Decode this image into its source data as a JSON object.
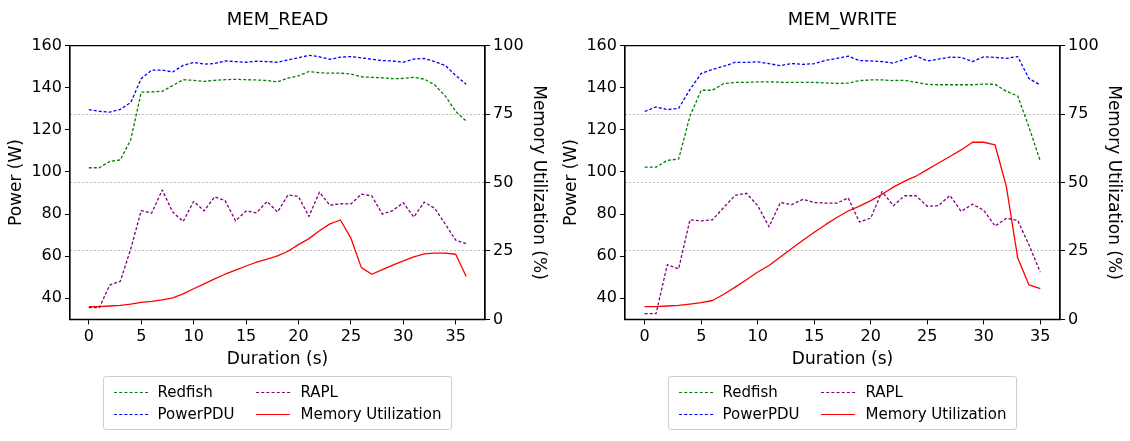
{
  "chart_data": [
    {
      "type": "line",
      "title": "MEM_READ",
      "xlabel": "Duration (s)",
      "ylabel": "Power (W)",
      "y2label": "Memory Utilization (%)",
      "x": [
        0,
        1,
        2,
        3,
        4,
        5,
        6,
        7,
        8,
        9,
        10,
        11,
        12,
        13,
        14,
        15,
        16,
        17,
        18,
        19,
        20,
        21,
        22,
        23,
        24,
        25,
        26,
        27,
        28,
        29,
        30,
        31,
        32,
        33,
        34,
        35,
        36
      ],
      "series": [
        {
          "name": "Redfish",
          "color": "#008000",
          "line_style": "dashed",
          "values": [
            102,
            102,
            105,
            105.7,
            115.3,
            137.9,
            138,
            138.3,
            141,
            143.8,
            143.5,
            143,
            143.5,
            143.8,
            144,
            143.8,
            143.7,
            143.4,
            142.8,
            144.6,
            145.6,
            147.7,
            147.1,
            146.9,
            146.9,
            146.5,
            145.2,
            144.9,
            144.7,
            144.3,
            144.4,
            144.9,
            144.1,
            141.3,
            136.1,
            128.7,
            124.2
          ]
        },
        {
          "name": "PowerPDU",
          "color": "#0000ff",
          "line_style": "dashed",
          "values": [
            129.6,
            128.8,
            128.4,
            129.7,
            133,
            144.3,
            148.4,
            148.4,
            147.5,
            150.6,
            152,
            151.2,
            151.5,
            152.7,
            152.4,
            152.1,
            152.6,
            152.4,
            152.1,
            153.2,
            154.2,
            155.4,
            154.7,
            153.5,
            154.5,
            154.8,
            154.2,
            153.5,
            152.9,
            152.7,
            152.1,
            153.6,
            153.9,
            152.4,
            150.6,
            145.8,
            141.6
          ]
        },
        {
          "name": "RAPL",
          "color": "#800080",
          "line_style": "dashed",
          "values": [
            35.6,
            35.6,
            46.3,
            48.1,
            63.4,
            81.7,
            80.5,
            91.4,
            81,
            76.5,
            86,
            81.5,
            88.2,
            86.4,
            76.8,
            81.5,
            80.6,
            86,
            81,
            89.1,
            88.3,
            78.9,
            90.4,
            84.2,
            84.9,
            84.8,
            89.5,
            88.6,
            80,
            81.7,
            85.4,
            78.6,
            85.7,
            82.7,
            75.3,
            67.6,
            66
          ]
        },
        {
          "name": "Memory Utilization",
          "color": "#ff0000",
          "line_style": "solid",
          "axis": "y2",
          "values": [
            4.7,
            4.7,
            4.9,
            5.1,
            5.6,
            6.2,
            6.6,
            7.1,
            7.9,
            9.3,
            11.2,
            13,
            14.8,
            16.5,
            18,
            19.5,
            20.9,
            22,
            23.2,
            24.9,
            27.3,
            29.5,
            32.4,
            34.9,
            36.3,
            29.7,
            18.9,
            16.5,
            18.2,
            19.8,
            21.4,
            22.8,
            23.9,
            24.2,
            24.2,
            23.8,
            15.7
          ]
        }
      ],
      "xlim": [
        -1.8,
        37.8
      ],
      "xticks": [
        0,
        5,
        10,
        15,
        20,
        25,
        30,
        35
      ],
      "ylim": [
        30,
        160
      ],
      "yticks": [
        40,
        60,
        80,
        100,
        120,
        140,
        160
      ],
      "y2lim": [
        0,
        100
      ],
      "y2ticks": [
        0,
        25,
        50,
        75,
        100
      ],
      "grid": "y2",
      "legend": "bottom",
      "marker": "none"
    },
    {
      "type": "line",
      "title": "MEM_WRITE",
      "xlabel": "Duration (s)",
      "ylabel": "Power (W)",
      "y2label": "Memory Utilization (%)",
      "x": [
        0,
        1,
        2,
        3,
        4,
        5,
        6,
        7,
        8,
        9,
        10,
        11,
        12,
        13,
        14,
        15,
        16,
        17,
        18,
        19,
        20,
        21,
        22,
        23,
        24,
        25,
        26,
        27,
        28,
        29,
        30,
        31,
        32,
        33,
        34,
        35
      ],
      "series": [
        {
          "name": "Redfish",
          "color": "#008000",
          "line_style": "dashed",
          "values": [
            102.3,
            102.3,
            105.5,
            106.1,
            126.5,
            138.8,
            138.8,
            142,
            142.5,
            142.5,
            142.8,
            142.8,
            142.6,
            142.5,
            142.5,
            142.5,
            142.3,
            142,
            142.2,
            143.4,
            143.7,
            143.7,
            143.4,
            143.5,
            142.6,
            141.6,
            141.4,
            141.4,
            141.4,
            141.4,
            141.7,
            141.6,
            138.3,
            136.1,
            121.3,
            105.2
          ]
        },
        {
          "name": "PowerPDU",
          "color": "#0000ff",
          "line_style": "dashed",
          "values": [
            128.7,
            130.9,
            129.6,
            130.2,
            139.1,
            146.8,
            148.7,
            150.2,
            152.1,
            152,
            152.3,
            151.4,
            150.5,
            151.5,
            151.1,
            151.4,
            153,
            153.9,
            155,
            152.9,
            152.7,
            152.4,
            151.7,
            153.6,
            155.1,
            152.7,
            153.6,
            154.5,
            154.4,
            152.4,
            154.7,
            154.4,
            153.9,
            154.8,
            144.3,
            141.3
          ]
        },
        {
          "name": "RAPL",
          "color": "#800080",
          "line_style": "dashed",
          "values": [
            32.7,
            32.7,
            56,
            54,
            77.3,
            76.8,
            77.3,
            83.2,
            88.9,
            89.9,
            84,
            74,
            85.5,
            84.5,
            87,
            85.5,
            85.2,
            85.2,
            87.7,
            76.2,
            78.1,
            90.7,
            84,
            88.7,
            88.7,
            83.7,
            84,
            88.9,
            81.3,
            84.7,
            81.8,
            74.3,
            78,
            77,
            65.4,
            52.4
          ]
        },
        {
          "name": "Memory Utilization",
          "color": "#ff0000",
          "line_style": "solid",
          "axis": "y2",
          "values": [
            4.7,
            4.7,
            4.9,
            5.1,
            5.6,
            6.1,
            6.9,
            9.2,
            11.8,
            14.5,
            17.3,
            19.7,
            22.8,
            25.9,
            28.9,
            31.8,
            34.6,
            37.2,
            39.6,
            41.4,
            43.4,
            45.7,
            48.3,
            50.5,
            52.3,
            54.7,
            57.1,
            59.5,
            61.9,
            64.7,
            64.7,
            63.7,
            48.5,
            22.5,
            12.6,
            11.2
          ]
        }
      ],
      "xlim": [
        -1.75,
        36.75
      ],
      "xticks": [
        0,
        5,
        10,
        15,
        20,
        25,
        30,
        35
      ],
      "ylim": [
        30,
        160
      ],
      "yticks": [
        40,
        60,
        80,
        100,
        120,
        140,
        160
      ],
      "y2lim": [
        0,
        100
      ],
      "y2ticks": [
        0,
        25,
        50,
        75,
        100
      ],
      "grid": "y2",
      "legend": "bottom",
      "marker": "none"
    }
  ]
}
